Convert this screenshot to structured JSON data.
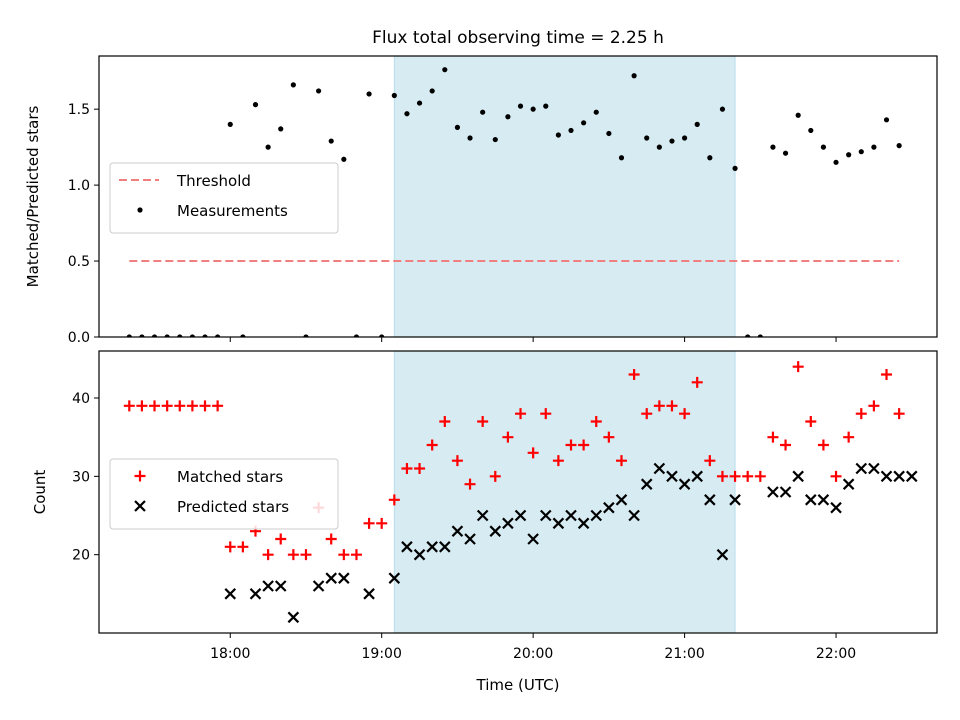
{
  "title": "Flux total observing time = 2.25 h",
  "chart_data": [
    {
      "type": "scatter",
      "panel": "top",
      "xlabel": "",
      "ylabel": "Matched/Predicted stars",
      "xlim": [
        "17:08",
        "22:40"
      ],
      "ylim": [
        0,
        1.85
      ],
      "yticks": [
        "0.0",
        "0.5",
        "1.0",
        "1.5"
      ],
      "grid": false,
      "legend_position": "center-left",
      "shaded_interval": {
        "start": "19:05",
        "end": "21:20",
        "color": "#add8e6"
      },
      "threshold": {
        "name": "Threshold",
        "value": 0.5,
        "x_start": "17:20",
        "x_end": "22:25",
        "color": "#f08080",
        "style": "dashed"
      },
      "series": [
        {
          "name": "Measurements",
          "color": "#000000",
          "marker": "dot",
          "x": [
            "17:20",
            "17:25",
            "17:30",
            "17:35",
            "17:40",
            "17:45",
            "17:50",
            "17:55",
            "18:00",
            "18:05",
            "18:10",
            "18:15",
            "18:20",
            "18:25",
            "18:30",
            "18:35",
            "18:40",
            "18:45",
            "18:50",
            "18:55",
            "19:00",
            "19:05",
            "19:10",
            "19:15",
            "19:20",
            "19:25",
            "19:30",
            "19:35",
            "19:40",
            "19:45",
            "19:50",
            "19:55",
            "20:00",
            "20:05",
            "20:10",
            "20:15",
            "20:20",
            "20:25",
            "20:30",
            "20:35",
            "20:40",
            "20:45",
            "20:50",
            "20:55",
            "21:00",
            "21:05",
            "21:10",
            "21:15",
            "21:20",
            "21:25",
            "21:30",
            "21:35",
            "21:40",
            "21:45",
            "21:50",
            "21:55",
            "22:00",
            "22:05",
            "22:10",
            "22:15",
            "22:20",
            "22:25"
          ],
          "y": [
            0,
            0,
            0,
            0,
            0,
            0,
            0,
            0,
            1.4,
            0,
            1.53,
            1.25,
            1.37,
            1.66,
            0,
            1.62,
            1.29,
            1.17,
            0,
            1.6,
            0,
            1.59,
            1.47,
            1.54,
            1.62,
            1.76,
            1.38,
            1.31,
            1.48,
            1.3,
            1.45,
            1.52,
            1.5,
            1.52,
            1.33,
            1.36,
            1.41,
            1.48,
            1.34,
            1.18,
            1.72,
            1.31,
            1.25,
            1.29,
            1.31,
            1.4,
            1.18,
            1.5,
            1.11,
            0,
            0,
            1.25,
            1.21,
            1.46,
            1.36,
            1.25,
            1.15,
            1.2,
            1.22,
            1.25,
            1.43,
            1.26
          ]
        }
      ]
    },
    {
      "type": "scatter",
      "panel": "bottom",
      "xlabel": "Time (UTC)",
      "ylabel": "Count",
      "xlim": [
        "17:08",
        "22:40"
      ],
      "ylim": [
        10,
        46
      ],
      "xticks": [
        "18:00",
        "19:00",
        "20:00",
        "21:00",
        "22:00"
      ],
      "yticks": [
        "20",
        "30",
        "40"
      ],
      "grid": false,
      "legend_position": "center-left",
      "shaded_interval": {
        "start": "19:05",
        "end": "21:20",
        "color": "#add8e6"
      },
      "series": [
        {
          "name": "Matched stars",
          "color": "#ff0000",
          "marker": "plus",
          "x": [
            "17:20",
            "17:25",
            "17:30",
            "17:35",
            "17:40",
            "17:45",
            "17:50",
            "17:55",
            "18:00",
            "18:05",
            "18:10",
            "18:15",
            "18:20",
            "18:25",
            "18:30",
            "18:35",
            "18:40",
            "18:45",
            "18:50",
            "18:55",
            "19:00",
            "19:05",
            "19:10",
            "19:15",
            "19:20",
            "19:25",
            "19:30",
            "19:35",
            "19:40",
            "19:45",
            "19:50",
            "19:55",
            "20:00",
            "20:05",
            "20:10",
            "20:15",
            "20:20",
            "20:25",
            "20:30",
            "20:35",
            "20:40",
            "20:45",
            "20:50",
            "20:55",
            "21:00",
            "21:05",
            "21:10",
            "21:15",
            "21:20",
            "21:25",
            "21:30",
            "21:35",
            "21:40",
            "21:45",
            "21:50",
            "21:55",
            "22:00",
            "22:05",
            "22:10",
            "22:15",
            "22:20",
            "22:25"
          ],
          "y": [
            39,
            39,
            39,
            39,
            39,
            39,
            39,
            39,
            21,
            21,
            23,
            20,
            22,
            20,
            20,
            26,
            22,
            20,
            20,
            24,
            24,
            27,
            31,
            31,
            34,
            37,
            32,
            29,
            37,
            30,
            35,
            38,
            33,
            38,
            32,
            34,
            34,
            37,
            35,
            32,
            43,
            38,
            39,
            39,
            38,
            42,
            32,
            30,
            30,
            30,
            30,
            35,
            34,
            44,
            37,
            34,
            30,
            35,
            38,
            39,
            43,
            38
          ]
        },
        {
          "name": "Predicted stars",
          "color": "#000000",
          "marker": "x",
          "x": [
            "18:00",
            "18:10",
            "18:15",
            "18:20",
            "18:25",
            "18:35",
            "18:40",
            "18:45",
            "18:55",
            "19:05",
            "19:10",
            "19:15",
            "19:20",
            "19:25",
            "19:30",
            "19:35",
            "19:40",
            "19:45",
            "19:50",
            "19:55",
            "20:00",
            "20:05",
            "20:10",
            "20:15",
            "20:20",
            "20:25",
            "20:30",
            "20:35",
            "20:40",
            "20:45",
            "20:50",
            "20:55",
            "21:00",
            "21:05",
            "21:10",
            "21:15",
            "21:20",
            "21:35",
            "21:40",
            "21:45",
            "21:50",
            "21:55",
            "22:00",
            "22:05",
            "22:10",
            "22:15",
            "22:20",
            "22:25",
            "22:30"
          ],
          "y": [
            15,
            15,
            16,
            16,
            12,
            16,
            17,
            17,
            15,
            17,
            21,
            20,
            21,
            21,
            23,
            22,
            25,
            23,
            24,
            25,
            22,
            25,
            24,
            25,
            24,
            25,
            26,
            27,
            25,
            29,
            31,
            30,
            29,
            30,
            27,
            20,
            27,
            28,
            28,
            30,
            27,
            27,
            26,
            29,
            31,
            31,
            30,
            30,
            30
          ]
        }
      ]
    }
  ]
}
